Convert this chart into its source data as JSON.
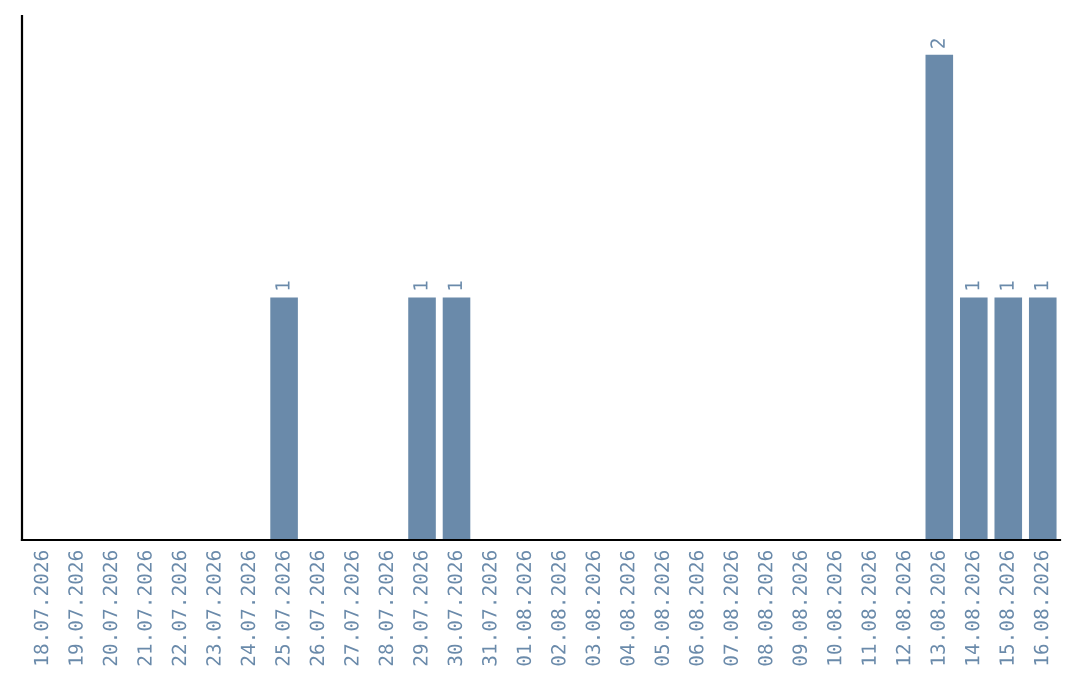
{
  "chart_data": {
    "type": "bar",
    "categories": [
      "18.07.2026",
      "19.07.2026",
      "20.07.2026",
      "21.07.2026",
      "22.07.2026",
      "23.07.2026",
      "24.07.2026",
      "25.07.2026",
      "26.07.2026",
      "27.07.2026",
      "28.07.2026",
      "29.07.2026",
      "30.07.2026",
      "31.07.2026",
      "01.08.2026",
      "02.08.2026",
      "03.08.2026",
      "04.08.2026",
      "05.08.2026",
      "06.08.2026",
      "07.08.2026",
      "08.08.2026",
      "09.08.2026",
      "10.08.2026",
      "11.08.2026",
      "12.08.2026",
      "13.08.2026",
      "14.08.2026",
      "15.08.2026",
      "16.08.2026"
    ],
    "values": [
      0,
      0,
      0,
      0,
      0,
      0,
      0,
      1,
      0,
      0,
      0,
      1,
      1,
      0,
      0,
      0,
      0,
      0,
      0,
      0,
      0,
      0,
      0,
      0,
      0,
      0,
      2,
      1,
      1,
      1
    ],
    "value_labels": [
      null,
      null,
      null,
      null,
      null,
      null,
      null,
      "1",
      null,
      null,
      null,
      "1",
      "1",
      null,
      null,
      null,
      null,
      null,
      null,
      null,
      null,
      null,
      null,
      null,
      null,
      null,
      "2",
      "1",
      "1",
      "1"
    ],
    "color": "#6a8aaa",
    "tick_labels": "x",
    "grid": false,
    "legend": false
  }
}
